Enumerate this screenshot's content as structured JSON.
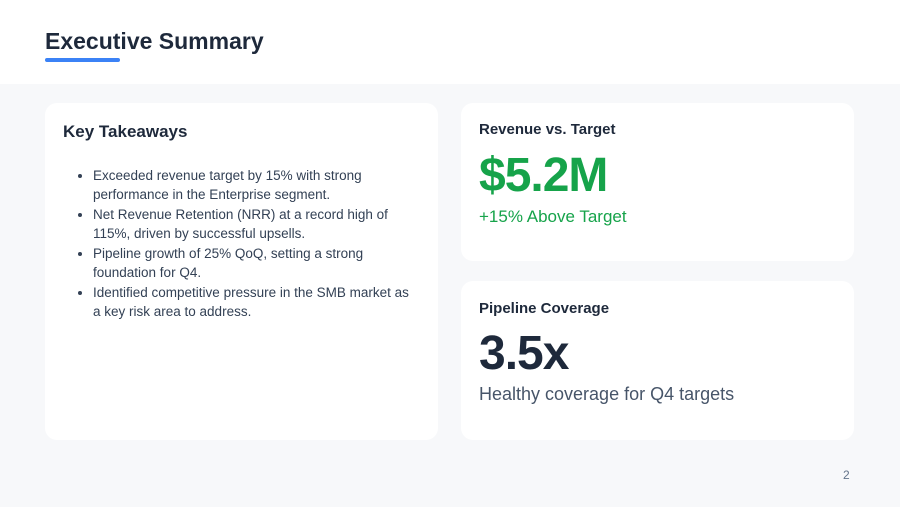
{
  "header": {
    "title": "Executive Summary"
  },
  "takeaways": {
    "title": "Key Takeaways",
    "items": [
      "Exceeded revenue target by 15% with strong performance in the Enterprise segment.",
      "Net Revenue Retention (NRR) at a record high of 115%, driven by successful upsells.",
      "Pipeline growth of 25% QoQ, setting a strong foundation for Q4.",
      "Identified competitive pressure in the SMB market as a key risk area to address."
    ]
  },
  "revenue": {
    "title": "Revenue vs. Target",
    "value": "$5.2M",
    "note": "+15% Above Target"
  },
  "pipeline": {
    "title": "Pipeline Coverage",
    "value": "3.5x",
    "note": "Healthy coverage for Q4 targets"
  },
  "page_number": "2"
}
